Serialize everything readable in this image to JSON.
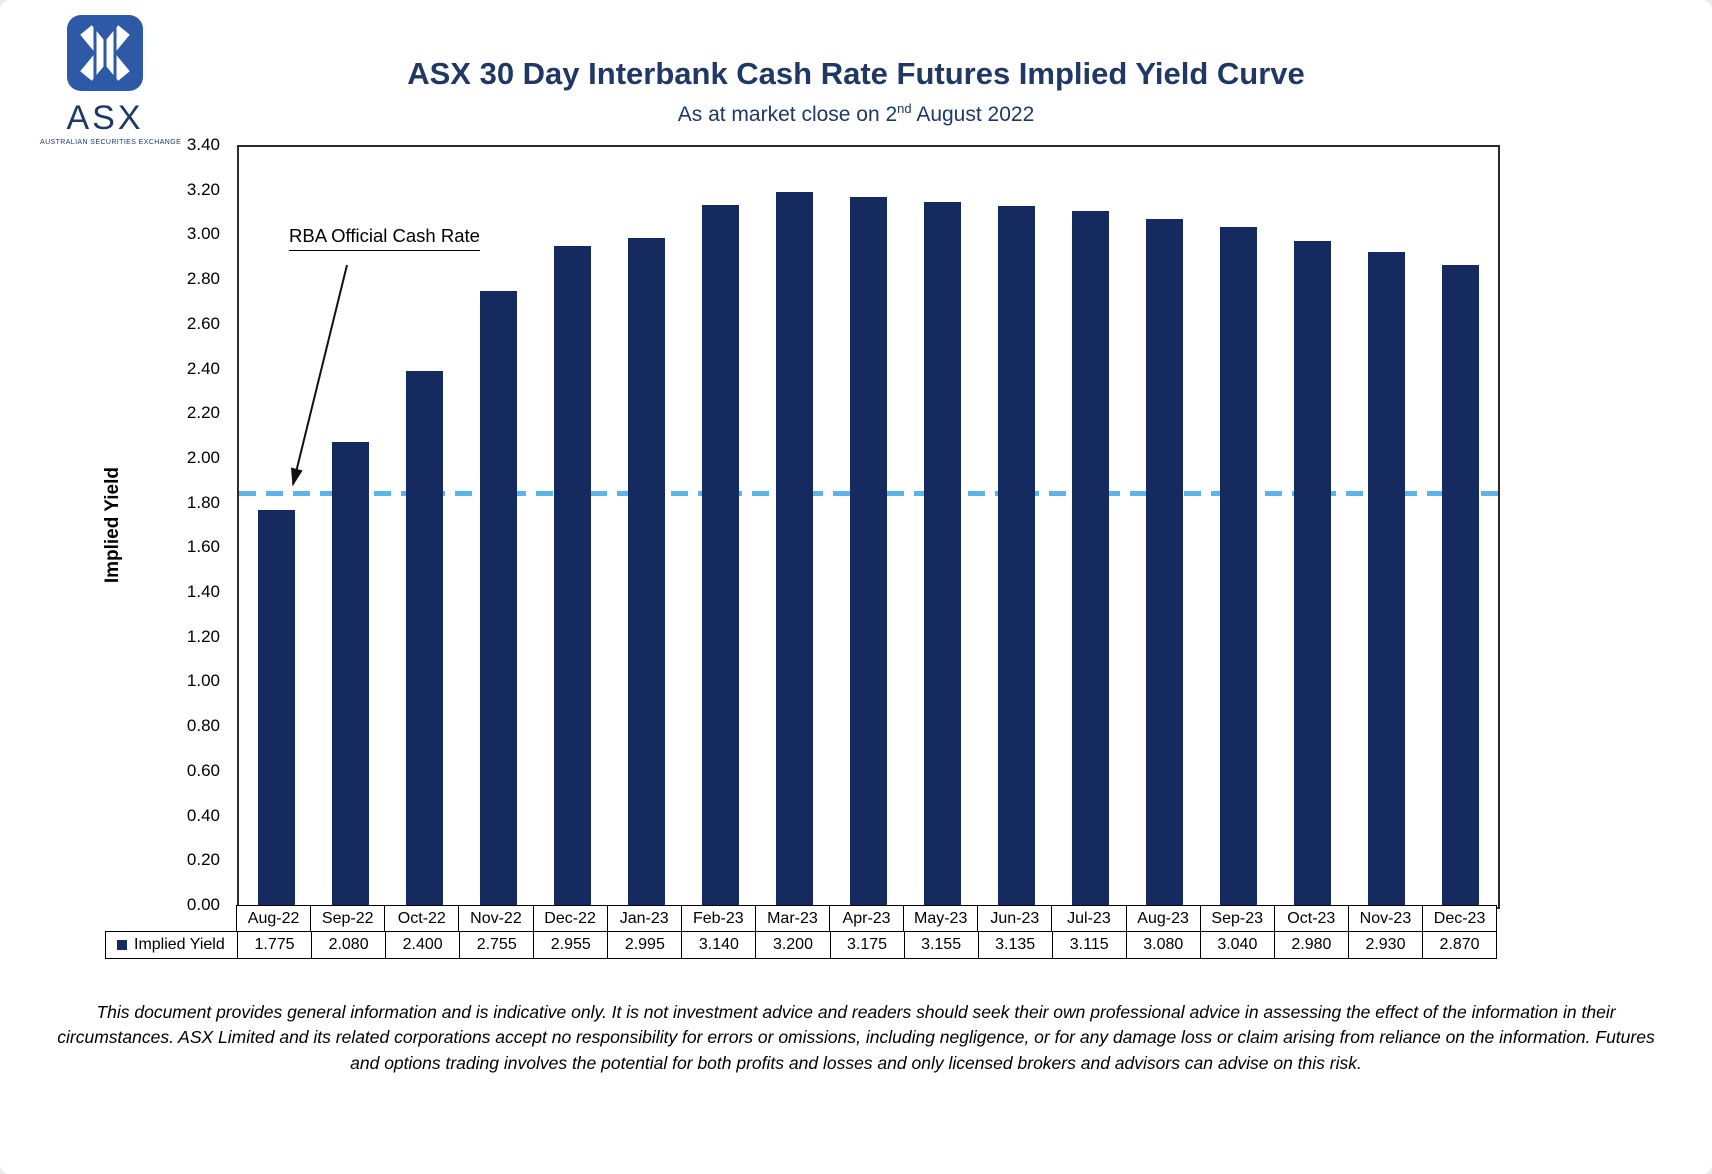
{
  "header": {
    "logo": {
      "brand": "ASX",
      "tagline": "AUSTRALIAN SECURITIES EXCHANGE"
    },
    "title": "ASX 30 Day Interbank Cash Rate Futures Implied Yield Curve",
    "subtitle_prefix": "As at market close on 2",
    "subtitle_sup": "nd",
    "subtitle_suffix": " August 2022"
  },
  "chart_data": {
    "type": "bar",
    "title": "ASX 30 Day Interbank Cash Rate Futures Implied Yield Curve",
    "subtitle": "As at market close on 2nd August 2022",
    "xlabel": "",
    "ylabel": "Implied Yield",
    "ylim": [
      0,
      3.4
    ],
    "ytick_step": 0.2,
    "grid": false,
    "legend_position": "bottom-table",
    "categories": [
      "Aug-22",
      "Sep-22",
      "Oct-22",
      "Nov-22",
      "Dec-22",
      "Jan-23",
      "Feb-23",
      "Mar-23",
      "Apr-23",
      "May-23",
      "Jun-23",
      "Jul-23",
      "Aug-23",
      "Sep-23",
      "Oct-23",
      "Nov-23",
      "Dec-23"
    ],
    "series": [
      {
        "name": "Implied Yield",
        "values": [
          1.775,
          2.08,
          2.4,
          2.755,
          2.955,
          2.995,
          3.14,
          3.2,
          3.175,
          3.155,
          3.135,
          3.115,
          3.08,
          3.04,
          2.98,
          2.93,
          2.87
        ]
      }
    ],
    "reference_line": {
      "label": "RBA Official Cash Rate",
      "value": 1.85,
      "color": "#5eb3e8",
      "style": "dashed"
    },
    "colors": {
      "bar": "#152a5e",
      "title": "#1f3864",
      "reference": "#5eb3e8"
    }
  },
  "footer": {
    "text": "This document provides general information and is indicative only. It is not investment advice and readers should seek their own professional advice in assessing the effect of the information in their circumstances. ASX Limited and its related corporations accept no responsibility for errors or omissions, including negligence, or for any damage loss or claim arising from reliance on the information. Futures and options trading involves the potential for both profits and losses and only licensed brokers and advisors can advise on this risk."
  }
}
